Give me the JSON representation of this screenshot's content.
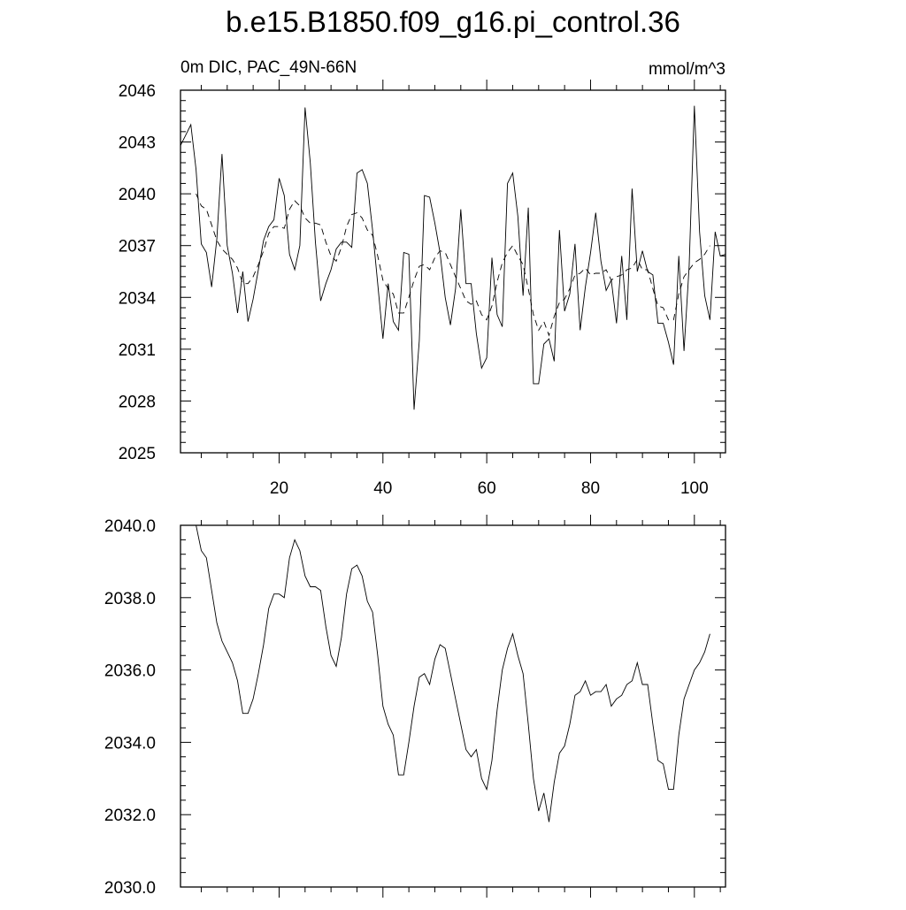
{
  "figure": {
    "title": "b.e15.B1850.f09_g16.pi_control.36"
  },
  "chart_data": [
    {
      "type": "line",
      "left_label": "0m DIC, PAC_49N-66N",
      "right_label": "mmol/m^3",
      "xlim": [
        1,
        106
      ],
      "ylim": [
        2025,
        2046
      ],
      "xticks": [
        20,
        40,
        60,
        80,
        100
      ],
      "yticks": [
        2025,
        2028,
        2031,
        2034,
        2037,
        2040,
        2043,
        2046
      ],
      "ytick_labels": [
        "2025",
        "2028",
        "2031",
        "2034",
        "2037",
        "2040",
        "2043",
        "2046"
      ],
      "line_color": "#000000",
      "series": [
        {
          "style": "solid",
          "x": [
            1,
            2,
            3,
            4,
            5,
            6,
            7,
            8,
            9,
            10,
            11,
            12,
            13,
            14,
            15,
            16,
            17,
            18,
            19,
            20,
            21,
            22,
            23,
            24,
            25,
            26,
            27,
            28,
            29,
            30,
            31,
            32,
            33,
            34,
            35,
            36,
            37,
            38,
            39,
            40,
            41,
            42,
            43,
            44,
            45,
            46,
            47,
            48,
            49,
            50,
            51,
            52,
            53,
            54,
            55,
            56,
            57,
            58,
            59,
            60,
            61,
            62,
            63,
            64,
            65,
            66,
            67,
            68,
            69,
            70,
            71,
            72,
            73,
            74,
            75,
            76,
            77,
            78,
            79,
            80,
            81,
            82,
            83,
            84,
            85,
            86,
            87,
            88,
            89,
            90,
            91,
            92,
            93,
            94,
            95,
            96,
            97,
            98,
            99,
            100,
            101,
            102,
            103,
            104,
            105,
            106
          ],
          "y": [
            2042.8,
            2043.4,
            2044.0,
            2041.4,
            2037.1,
            2036.6,
            2034.6,
            2037.4,
            2042.3,
            2037.0,
            2035.4,
            2033.1,
            2035.5,
            2032.6,
            2033.9,
            2035.6,
            2037.3,
            2038.1,
            2038.5,
            2040.9,
            2039.9,
            2036.5,
            2035.6,
            2037.0,
            2045.0,
            2041.8,
            2037.2,
            2033.8,
            2034.8,
            2035.6,
            2036.8,
            2037.2,
            2037.2,
            2036.9,
            2041.2,
            2041.4,
            2040.6,
            2037.9,
            2034.8,
            2031.6,
            2034.8,
            2032.6,
            2032.1,
            2036.6,
            2036.5,
            2027.5,
            2031.5,
            2039.9,
            2039.8,
            2038.3,
            2036.6,
            2034.0,
            2032.4,
            2034.5,
            2039.1,
            2034.8,
            2034.8,
            2031.9,
            2029.9,
            2030.5,
            2036.3,
            2033.0,
            2032.3,
            2040.6,
            2041.2,
            2038.7,
            2034.1,
            2039.2,
            2029.0,
            2029.0,
            2031.3,
            2031.6,
            2030.3,
            2037.9,
            2033.2,
            2034.2,
            2037.1,
            2032.1,
            2034.6,
            2036.6,
            2038.9,
            2036.1,
            2034.4,
            2035.0,
            2032.5,
            2036.4,
            2032.7,
            2040.3,
            2035.5,
            2036.7,
            2035.5,
            2035.3,
            2032.5,
            2032.5,
            2031.4,
            2030.1,
            2036.4,
            2030.9,
            2035.8,
            2045.1,
            2037.8,
            2034.1,
            2032.7,
            2037.8,
            2036.4,
            2036.5
          ]
        },
        {
          "style": "dashed",
          "x": [
            4,
            5,
            6,
            7,
            8,
            9,
            10,
            11,
            12,
            13,
            14,
            15,
            16,
            17,
            18,
            19,
            20,
            21,
            22,
            23,
            24,
            25,
            26,
            27,
            28,
            29,
            30,
            31,
            32,
            33,
            34,
            35,
            36,
            37,
            38,
            39,
            40,
            41,
            42,
            43,
            44,
            45,
            46,
            47,
            48,
            49,
            50,
            51,
            52,
            53,
            54,
            55,
            56,
            57,
            58,
            59,
            60,
            61,
            62,
            63,
            64,
            65,
            66,
            67,
            68,
            69,
            70,
            71,
            72,
            73,
            74,
            75,
            76,
            77,
            78,
            79,
            80,
            81,
            82,
            83,
            84,
            85,
            86,
            87,
            88,
            89,
            90,
            91,
            92,
            93,
            94,
            95,
            96,
            97,
            98,
            99,
            100,
            101,
            102,
            103
          ],
          "y": [
            2040.0,
            2039.3,
            2039.1,
            2038.2,
            2037.3,
            2036.8,
            2036.5,
            2036.2,
            2035.7,
            2034.8,
            2034.8,
            2035.2,
            2035.9,
            2036.7,
            2037.7,
            2038.1,
            2038.1,
            2038.0,
            2039.1,
            2039.6,
            2039.3,
            2038.6,
            2038.3,
            2038.3,
            2038.2,
            2037.2,
            2036.4,
            2036.1,
            2036.9,
            2038.1,
            2038.8,
            2038.9,
            2038.6,
            2037.9,
            2037.6,
            2036.4,
            2035.0,
            2034.5,
            2034.2,
            2033.1,
            2033.1,
            2034.0,
            2035.0,
            2035.8,
            2035.9,
            2035.6,
            2036.3,
            2036.7,
            2036.6,
            2035.9,
            2035.2,
            2034.5,
            2033.8,
            2033.6,
            2033.8,
            2033.0,
            2032.7,
            2033.5,
            2034.9,
            2036.0,
            2036.6,
            2037.0,
            2036.4,
            2035.9,
            2034.5,
            2033.0,
            2032.1,
            2032.6,
            2031.8,
            2032.9,
            2033.7,
            2033.9,
            2034.5,
            2035.3,
            2035.4,
            2035.7,
            2035.3,
            2035.4,
            2035.4,
            2035.6,
            2035.0,
            2035.2,
            2035.3,
            2035.6,
            2035.7,
            2036.2,
            2035.6,
            2035.6,
            2034.5,
            2033.5,
            2033.4,
            2032.7,
            2032.7,
            2034.2,
            2035.2,
            2035.6,
            2036.0,
            2036.2,
            2036.5,
            2037.0
          ]
        }
      ]
    },
    {
      "type": "line",
      "xlim": [
        1,
        106
      ],
      "ylim": [
        2030,
        2040
      ],
      "xticks": [
        20,
        40,
        60,
        80,
        100
      ],
      "yticks": [
        2030,
        2032,
        2034,
        2036,
        2038,
        2040
      ],
      "ytick_labels": [
        "2030.0",
        "2032.0",
        "2034.0",
        "2036.0",
        "2038.0",
        "2040.0"
      ],
      "line_color": "#000000",
      "series": [
        {
          "style": "solid",
          "x": [
            4,
            5,
            6,
            7,
            8,
            9,
            10,
            11,
            12,
            13,
            14,
            15,
            16,
            17,
            18,
            19,
            20,
            21,
            22,
            23,
            24,
            25,
            26,
            27,
            28,
            29,
            30,
            31,
            32,
            33,
            34,
            35,
            36,
            37,
            38,
            39,
            40,
            41,
            42,
            43,
            44,
            45,
            46,
            47,
            48,
            49,
            50,
            51,
            52,
            53,
            54,
            55,
            56,
            57,
            58,
            59,
            60,
            61,
            62,
            63,
            64,
            65,
            66,
            67,
            68,
            69,
            70,
            71,
            72,
            73,
            74,
            75,
            76,
            77,
            78,
            79,
            80,
            81,
            82,
            83,
            84,
            85,
            86,
            87,
            88,
            89,
            90,
            91,
            92,
            93,
            94,
            95,
            96,
            97,
            98,
            99,
            100,
            101,
            102,
            103
          ],
          "y": [
            2040.0,
            2039.3,
            2039.1,
            2038.2,
            2037.3,
            2036.8,
            2036.5,
            2036.2,
            2035.7,
            2034.8,
            2034.8,
            2035.2,
            2035.9,
            2036.7,
            2037.7,
            2038.1,
            2038.1,
            2038.0,
            2039.1,
            2039.6,
            2039.3,
            2038.6,
            2038.3,
            2038.3,
            2038.2,
            2037.2,
            2036.4,
            2036.1,
            2036.9,
            2038.1,
            2038.8,
            2038.9,
            2038.6,
            2037.9,
            2037.6,
            2036.4,
            2035.0,
            2034.5,
            2034.2,
            2033.1,
            2033.1,
            2034.0,
            2035.0,
            2035.8,
            2035.9,
            2035.6,
            2036.3,
            2036.7,
            2036.6,
            2035.9,
            2035.2,
            2034.5,
            2033.8,
            2033.6,
            2033.8,
            2033.0,
            2032.7,
            2033.5,
            2034.9,
            2036.0,
            2036.6,
            2037.0,
            2036.4,
            2035.9,
            2034.5,
            2033.0,
            2032.1,
            2032.6,
            2031.8,
            2032.9,
            2033.7,
            2033.9,
            2034.5,
            2035.3,
            2035.4,
            2035.7,
            2035.3,
            2035.4,
            2035.4,
            2035.6,
            2035.0,
            2035.2,
            2035.3,
            2035.6,
            2035.7,
            2036.2,
            2035.6,
            2035.6,
            2034.5,
            2033.5,
            2033.4,
            2032.7,
            2032.7,
            2034.2,
            2035.2,
            2035.6,
            2036.0,
            2036.2,
            2036.5,
            2037.0
          ]
        }
      ]
    }
  ]
}
